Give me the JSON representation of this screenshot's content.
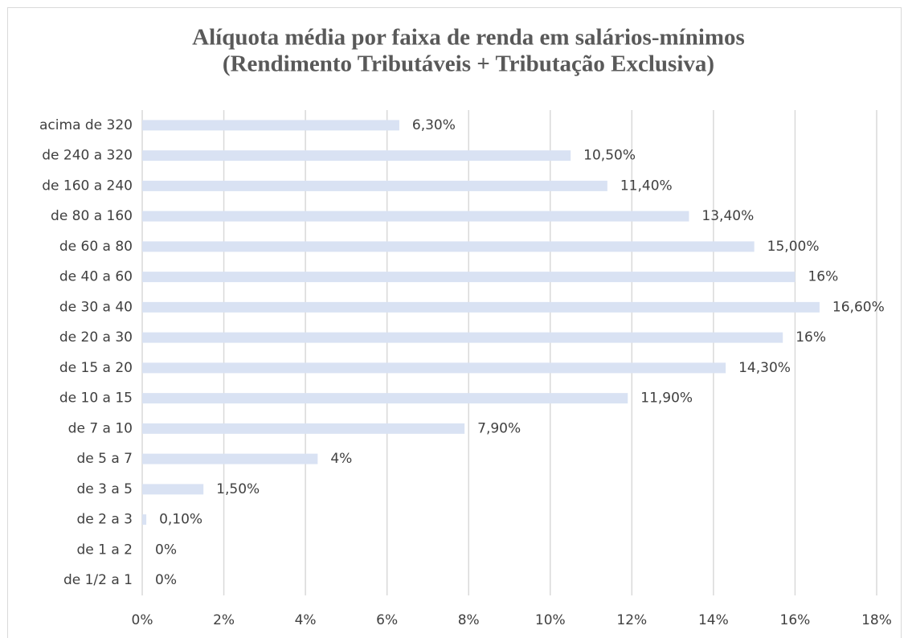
{
  "chart_data": {
    "type": "barh",
    "title": "Alíquota média por faixa de renda em salários-mínimos",
    "subtitle": "(Rendimento Tributáveis + Tributação Exclusiva)",
    "categories": [
      "acima de 320",
      "de 240 a 320",
      "de 160 a 240",
      "de 80 a 160",
      "de 60 a 80",
      "de 40 a 60",
      "de 30 a 40",
      "de 20 a 30",
      "de 15 a 20",
      "de 10 a 15",
      "de 7 a 10",
      "de 5 a 7",
      "de 3 a 5",
      "de 2 a 3",
      "de 1 a 2",
      "de 1/2 a 1"
    ],
    "values": [
      6.3,
      10.5,
      11.4,
      13.4,
      15.0,
      16.0,
      16.6,
      15.7,
      14.3,
      11.9,
      7.9,
      4.3,
      1.5,
      0.1,
      0,
      0
    ],
    "value_labels": [
      "6,30%",
      "10,50%",
      "11,40%",
      "13,40%",
      "15,00%",
      "16%",
      "16,60%",
      "16%",
      "14,30%",
      "11,90%",
      "7,90%",
      "4%",
      "1,50%",
      "0,10%",
      "0%",
      "0%"
    ],
    "color": "#d9e2f3",
    "xlim": [
      0,
      18
    ],
    "xticks": [
      {
        "value": 0,
        "label": "0%"
      },
      {
        "value": 2,
        "label": "2%"
      },
      {
        "value": 4,
        "label": "4%"
      },
      {
        "value": 6,
        "label": "6%"
      },
      {
        "value": 8,
        "label": "8%"
      },
      {
        "value": 10,
        "label": "10%"
      },
      {
        "value": 12,
        "label": "12%"
      },
      {
        "value": 14,
        "label": "14%"
      },
      {
        "value": 16,
        "label": "16%"
      },
      {
        "value": 18,
        "label": "18%"
      }
    ],
    "grid": true
  }
}
